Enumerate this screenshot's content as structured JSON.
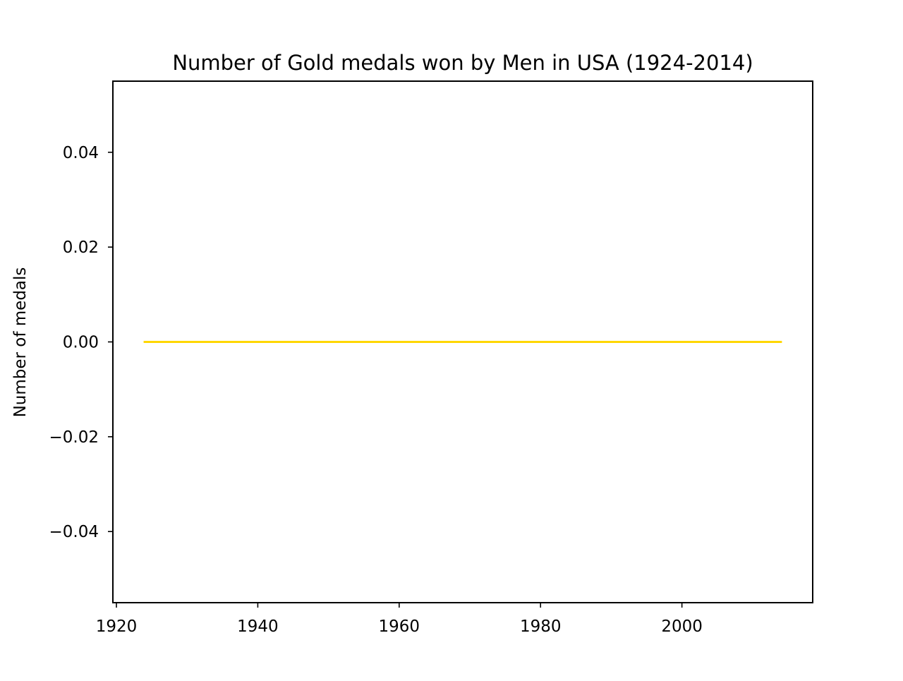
{
  "chart_data": {
    "type": "line",
    "title": "Number of Gold medals won by Men in USA (1924-2014)",
    "xlabel": "",
    "ylabel": "Number of medals",
    "xlim": [
      1919.5,
      2018.5
    ],
    "ylim": [
      -0.055,
      0.055
    ],
    "x_ticks": [
      1920,
      1940,
      1960,
      1980,
      2000
    ],
    "x_tick_labels": [
      "1920",
      "1940",
      "1960",
      "1980",
      "2000"
    ],
    "y_ticks": [
      0.04,
      0.02,
      0.0,
      -0.02,
      -0.04
    ],
    "y_tick_labels": [
      "0.04",
      "0.02",
      "0.00",
      "−0.02",
      "−0.04"
    ],
    "grid": false,
    "legend": "none",
    "series": [
      {
        "color": "#ffd700",
        "x": [
          1924,
          1928,
          1932,
          1936,
          1948,
          1952,
          1956,
          1960,
          1964,
          1968,
          1972,
          1976,
          1980,
          1984,
          1988,
          1992,
          1994,
          1998,
          2002,
          2006,
          2010,
          2014
        ],
        "y": [
          0,
          0,
          0,
          0,
          0,
          0,
          0,
          0,
          0,
          0,
          0,
          0,
          0,
          0,
          0,
          0,
          0,
          0,
          0,
          0,
          0,
          0
        ]
      }
    ]
  }
}
